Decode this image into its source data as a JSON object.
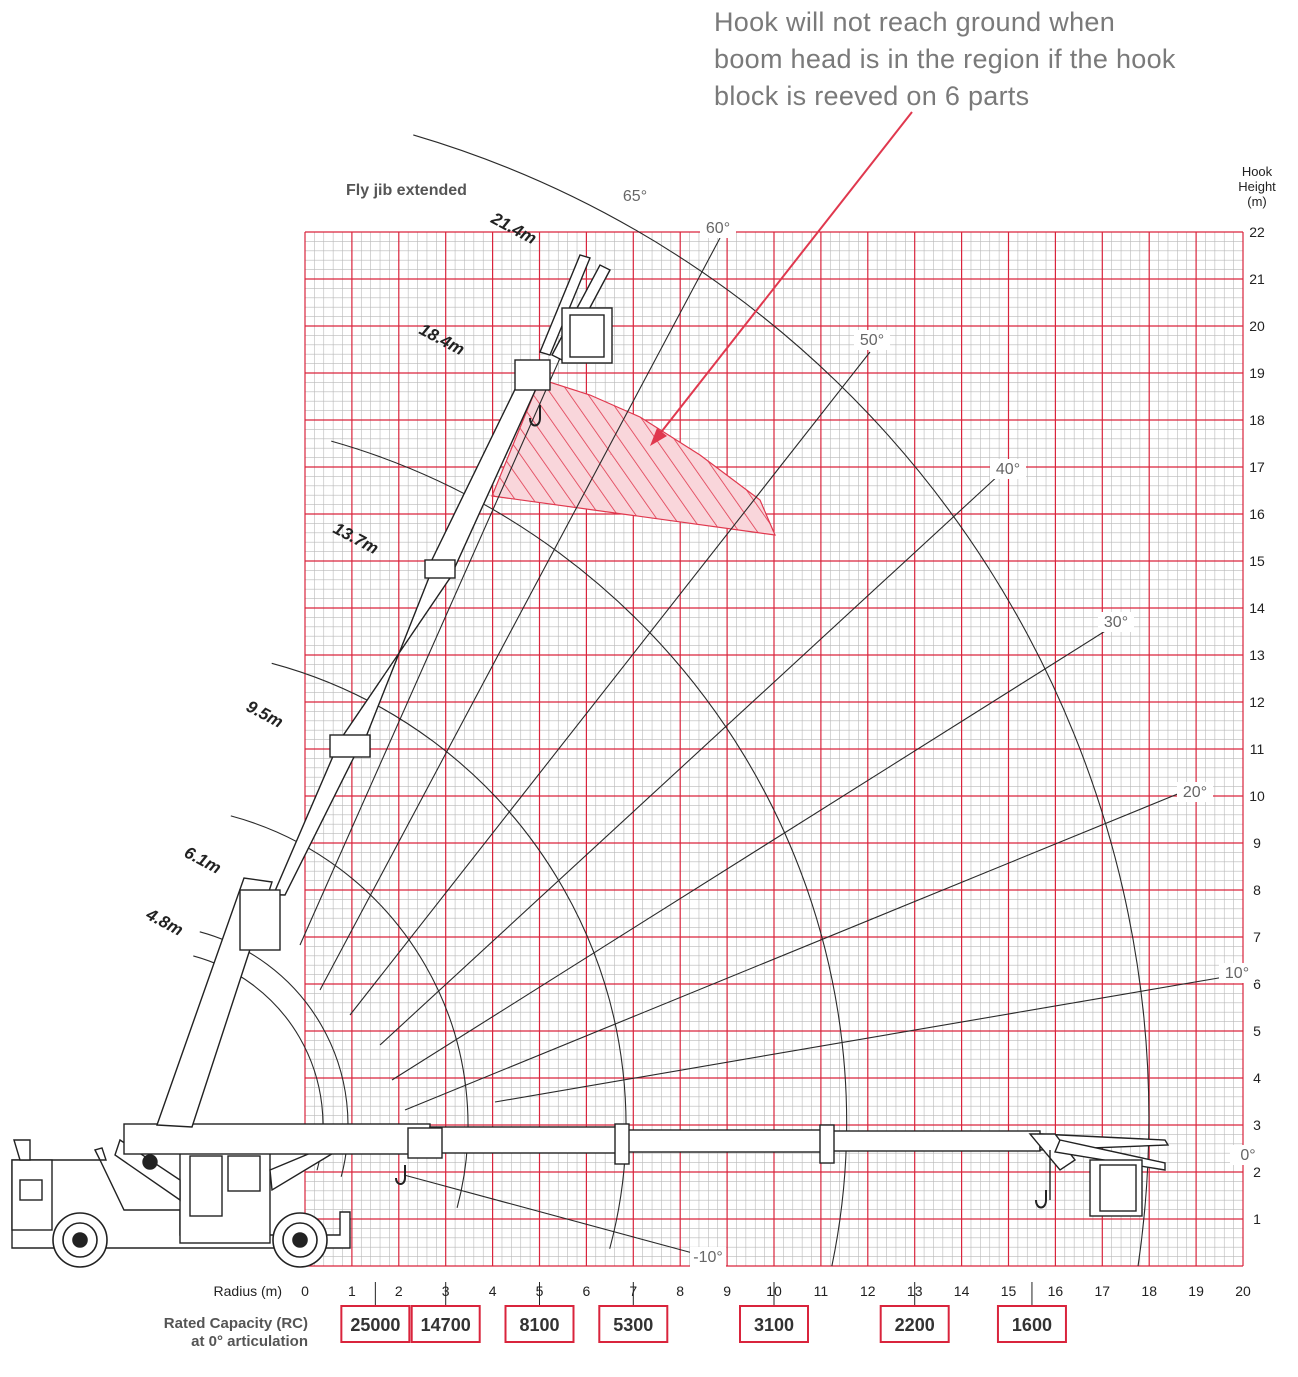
{
  "annotation": {
    "lines": [
      "Hook will not reach ground when",
      "boom head is in the region if the hook",
      "block is reeved on 6 parts"
    ]
  },
  "heading": "Fly jib extended",
  "y_axis": {
    "title_lines": [
      "Hook",
      "Height",
      "(m)"
    ],
    "min": 0,
    "max": 22,
    "ticks": [
      1,
      2,
      3,
      4,
      5,
      6,
      7,
      8,
      9,
      10,
      11,
      12,
      13,
      14,
      15,
      16,
      17,
      18,
      19,
      20,
      21,
      22
    ]
  },
  "x_axis": {
    "title": "Radius (m)",
    "min": 0,
    "max": 20,
    "ticks": [
      0,
      1,
      2,
      3,
      4,
      5,
      6,
      7,
      8,
      9,
      10,
      11,
      12,
      13,
      14,
      15,
      16,
      17,
      18,
      19,
      20
    ]
  },
  "boom_lengths": [
    {
      "label": "21.4m"
    },
    {
      "label": "18.4m"
    },
    {
      "label": "13.7m"
    },
    {
      "label": "9.5m"
    },
    {
      "label": "6.1m"
    },
    {
      "label": "4.8m"
    }
  ],
  "angles": [
    {
      "label": "65°"
    },
    {
      "label": "60°"
    },
    {
      "label": "50°"
    },
    {
      "label": "40°"
    },
    {
      "label": "30°"
    },
    {
      "label": "20°"
    },
    {
      "label": "10°"
    },
    {
      "label": "0°"
    },
    {
      "label": "-10°"
    }
  ],
  "capacity": {
    "title_lines": [
      "Rated Capacity (RC)",
      "at 0° articulation"
    ],
    "cells": [
      {
        "radius": 1.5,
        "value": "25000"
      },
      {
        "radius": 3,
        "value": "14700"
      },
      {
        "radius": 5,
        "value": "8100"
      },
      {
        "radius": 7,
        "value": "5300"
      },
      {
        "radius": 10,
        "value": "3100"
      },
      {
        "radius": 13,
        "value": "2200"
      },
      {
        "radius": 15.5,
        "value": "1600"
      }
    ]
  },
  "colors": {
    "grid_major": "#d9243c",
    "grid_minor": "#b9b9b9",
    "text": "#222222",
    "annotation": "#7a7a7a",
    "hatch": "#e0384e"
  }
}
